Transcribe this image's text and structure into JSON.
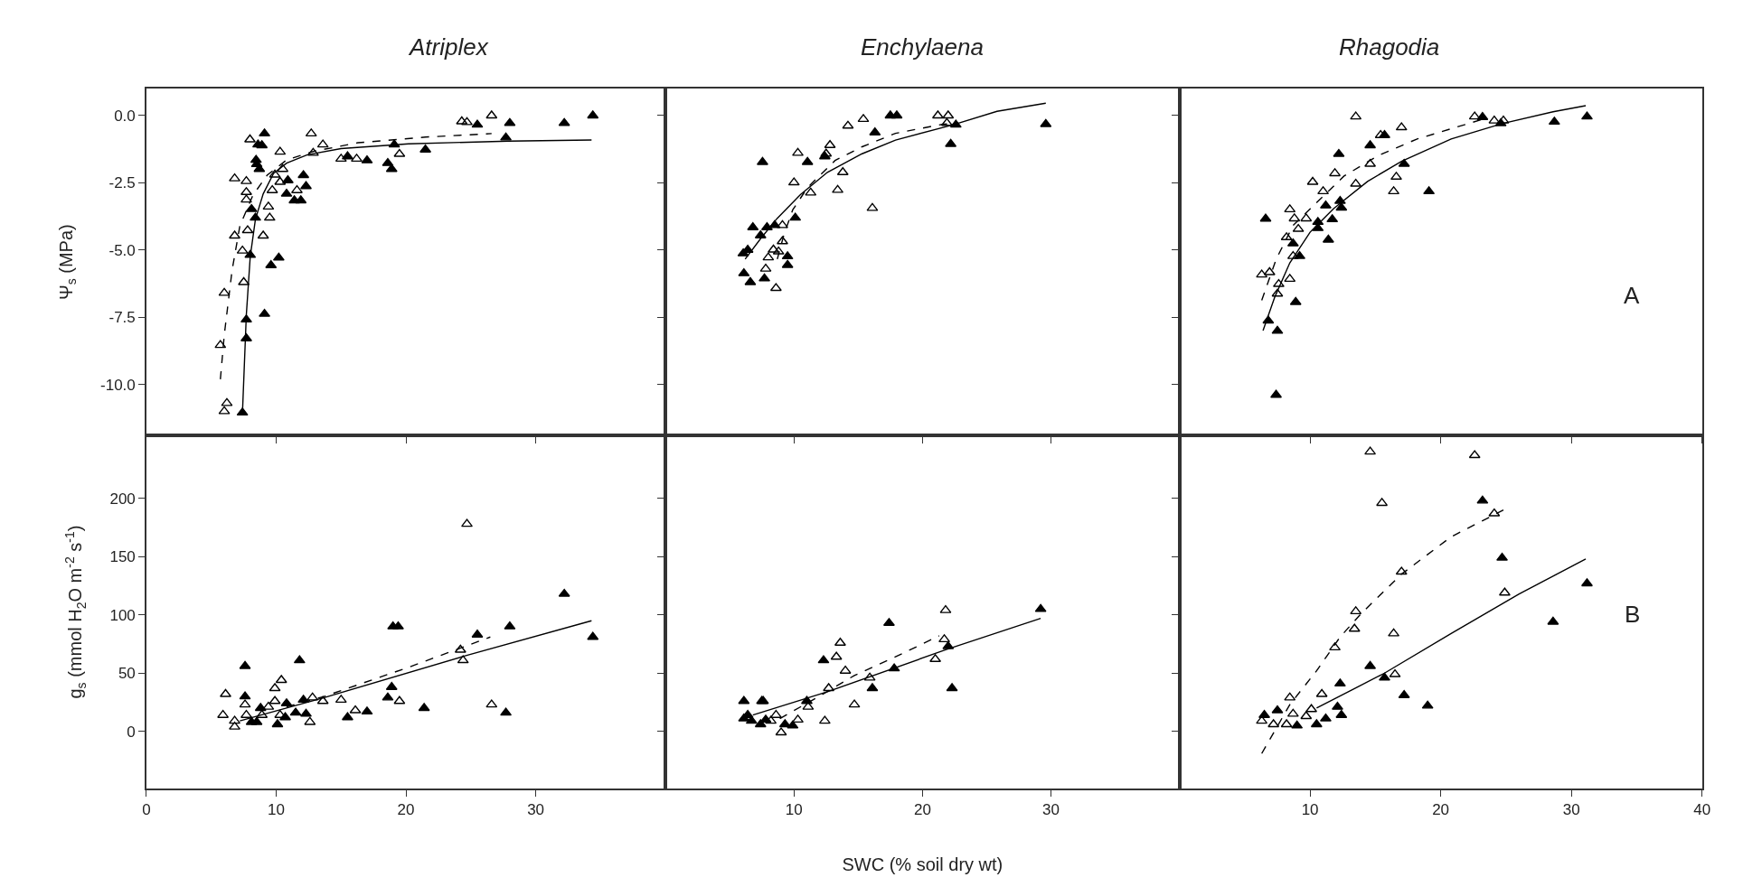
{
  "chart_data": [
    {
      "type": "scatter",
      "title": "Atriplex",
      "ylabel": "Ψ$_{s}$ (MPa)",
      "xlim": [
        0,
        40
      ],
      "xticks": [
        0,
        10,
        20,
        30
      ],
      "ylim": [
        -11.9,
        1.0
      ],
      "yticks": [
        {
          "value": 0,
          "label": "0.0"
        },
        {
          "value": -2.5,
          "label": "-2.5"
        },
        {
          "value": -5,
          "label": "-5.0"
        },
        {
          "value": -7.5,
          "label": "-7.5"
        },
        {
          "value": -10,
          "label": "-10.0"
        }
      ],
      "tick_labels": "y",
      "series": [
        {
          "type": "scatter",
          "marker": "triangle",
          "color": "#000000",
          "x": [
            9.1,
            8.6,
            8.9,
            8.45,
            8.5,
            8.7,
            10.9,
            12.1,
            12.3,
            10.8,
            11.4,
            11.9,
            8.1,
            8.4,
            8.0,
            9.6,
            10.2,
            7.7,
            9.1,
            7.7,
            7.4,
            15.5,
            17.0,
            19.1,
            18.6,
            18.9,
            21.5,
            25.5,
            28.0,
            27.7,
            32.2,
            34.4
          ],
          "values": [
            -0.67,
            -1.08,
            -1.11,
            -1.65,
            -1.81,
            -1.99,
            -2.41,
            -2.22,
            -2.63,
            -2.91,
            -3.16,
            -3.16,
            -3.48,
            -3.8,
            -5.19,
            -5.57,
            -5.29,
            -7.59,
            -7.38,
            -8.29,
            -11.05,
            -1.52,
            -1.67,
            -1.08,
            -1.77,
            -1.99,
            -1.27,
            -0.34,
            -0.28,
            -0.82,
            -0.28,
            0.0
          ]
        },
        {
          "type": "scatter",
          "marker": "triangle-open",
          "color": "#000000",
          "x": [
            7.98,
            12.7,
            13.6,
            10.3,
            12.85,
            15.0,
            16.2,
            19.5,
            24.3,
            24.7,
            26.6,
            6.8,
            7.7,
            7.7,
            7.7,
            9.9,
            10.5,
            10.3,
            9.7,
            11.6,
            9.4,
            9.5,
            6.8,
            7.8,
            9.0,
            7.4,
            7.5,
            6.0,
            5.7,
            6.2,
            6.0
          ],
          "values": [
            -0.89,
            -0.67,
            -1.08,
            -1.35,
            -1.39,
            -1.61,
            -1.61,
            -1.43,
            -0.22,
            -0.25,
            0.0,
            -2.34,
            -2.44,
            -2.85,
            -3.13,
            -2.2,
            -1.99,
            -2.47,
            -2.78,
            -2.78,
            -3.39,
            -3.8,
            -4.47,
            -4.27,
            -4.47,
            -5.03,
            -6.2,
            -6.6,
            -8.54,
            -10.7,
            -11.0
          ]
        },
        {
          "type": "line",
          "marker": "none",
          "line_style": "solid",
          "color": "#000000",
          "x": [
            7.4,
            7.7,
            8.0,
            8.4,
            9.0,
            9.8,
            10.8,
            12.4,
            15.0,
            20.2,
            27.9,
            34.3
          ],
          "values": [
            -11.08,
            -7.41,
            -5.25,
            -3.86,
            -2.91,
            -2.15,
            -1.77,
            -1.46,
            -1.23,
            -1.05,
            -0.95,
            -0.91
          ]
        },
        {
          "type": "line",
          "marker": "none",
          "line_style": "dashed",
          "color": "#000000",
          "x": [
            5.7,
            6.0,
            6.6,
            7.2,
            8.2,
            9.3,
            10.8,
            12.9,
            16.3,
            21.5,
            26.6
          ],
          "values": [
            -9.81,
            -8.16,
            -5.76,
            -4.11,
            -2.97,
            -2.22,
            -1.65,
            -1.33,
            -1.01,
            -0.8,
            -0.67
          ]
        }
      ]
    },
    {
      "type": "scatter",
      "title": "Enchylaena",
      "xlim": [
        0,
        40
      ],
      "xticks": [
        10,
        20,
        30
      ],
      "ylim": [
        -11.9,
        1.0
      ],
      "yticks": [
        0,
        -2.5,
        -5,
        -7.5,
        -10
      ],
      "tick_labels": false,
      "series": [
        {
          "type": "scatter",
          "marker": "triangle",
          "color": "#000000",
          "x": [
            7.55,
            11.05,
            12.4,
            16.3,
            17.5,
            18.0,
            22.6,
            22.2,
            29.6,
            6.8,
            7.9,
            8.5,
            10.1,
            7.4,
            6.4,
            6.05,
            9.5,
            9.5,
            6.1,
            6.6,
            7.7
          ],
          "values": [
            -1.73,
            -1.73,
            -1.52,
            -0.63,
            0.0,
            0.0,
            -0.34,
            -1.06,
            -0.32,
            -4.16,
            -4.16,
            -4.08,
            -3.8,
            -4.46,
            -5.0,
            -5.13,
            -5.24,
            -5.56,
            -5.87,
            -6.2,
            -6.06
          ]
        },
        {
          "type": "scatter",
          "marker": "triangle-open",
          "color": "#000000",
          "x": [
            10.3,
            10.0,
            11.3,
            12.8,
            12.5,
            14.2,
            15.4,
            13.8,
            13.4,
            16.1,
            21.2,
            22.0,
            21.9,
            9.1,
            9.1,
            8.4,
            8.8,
            8.0,
            7.8,
            8.6
          ],
          "values": [
            -1.39,
            -2.49,
            -2.87,
            -1.1,
            -1.42,
            -0.38,
            -0.13,
            -2.11,
            -2.77,
            -3.44,
            0.0,
            0.0,
            -0.28,
            -4.08,
            -4.68,
            -4.99,
            -5.06,
            -5.28,
            -5.7,
            -6.42
          ]
        },
        {
          "type": "line",
          "marker": "none",
          "line_style": "solid",
          "color": "#000000",
          "x": [
            6.2,
            7.4,
            8.7,
            10.5,
            12.6,
            15.3,
            17.9,
            22.4,
            25.8,
            29.6
          ],
          "values": [
            -5.34,
            -4.58,
            -3.82,
            -2.94,
            -2.11,
            -1.42,
            -0.91,
            -0.34,
            0.16,
            0.46
          ]
        },
        {
          "type": "line",
          "marker": "none",
          "line_style": "dashed",
          "color": "#000000",
          "x": [
            8.7,
            9.2,
            9.9,
            11.05,
            13.2,
            15.3,
            17.9,
            21.6,
            22.6
          ],
          "values": [
            -5.34,
            -4.46,
            -3.51,
            -2.68,
            -1.67,
            -1.16,
            -0.66,
            -0.32,
            -0.28
          ]
        }
      ]
    },
    {
      "type": "scatter",
      "title": "Rhagodia",
      "xlim": [
        0,
        40
      ],
      "xticks": [
        10,
        20,
        30,
        40
      ],
      "ylim": [
        -11.9,
        1.0
      ],
      "yticks": [
        0,
        -2.5,
        -5,
        -7.5,
        -10
      ],
      "tick_labels": false,
      "annotations": [
        "A"
      ],
      "series": [
        {
          "type": "scatter",
          "marker": "triangle",
          "color": "#000000",
          "x": [
            12.2,
            14.6,
            15.7,
            23.2,
            24.6,
            28.7,
            31.2,
            17.2,
            19.1,
            11.2,
            12.3,
            12.4,
            11.7,
            10.6,
            10.6,
            11.4,
            8.7,
            9.2,
            6.6,
            8.9,
            6.8,
            7.5,
            7.4
          ],
          "values": [
            -1.43,
            -1.11,
            -0.73,
            -0.06,
            -0.29,
            -0.23,
            -0.04,
            -1.8,
            -2.82,
            -3.35,
            -3.18,
            -3.43,
            -3.86,
            -3.96,
            -4.19,
            -4.62,
            -4.76,
            -5.23,
            -3.84,
            -6.94,
            -7.63,
            -8.01,
            -10.39
          ]
        },
        {
          "type": "scatter",
          "marker": "triangle-open",
          "color": "#000000",
          "x": [
            13.5,
            17.0,
            15.4,
            22.6,
            24.1,
            24.8,
            14.6,
            16.6,
            16.4,
            13.5,
            11.9,
            10.2,
            11.0,
            8.45,
            8.8,
            9.7,
            9.1,
            8.2,
            8.7,
            6.3,
            6.9,
            8.45,
            7.6,
            7.5
          ],
          "values": [
            -0.04,
            -0.44,
            -0.73,
            -0.04,
            -0.19,
            -0.19,
            -1.8,
            -2.28,
            -2.82,
            -2.54,
            -2.15,
            -2.47,
            -2.82,
            -3.49,
            -3.83,
            -3.83,
            -4.22,
            -4.53,
            -5.23,
            -5.92,
            -5.83,
            -6.08,
            -6.27,
            -6.63
          ]
        },
        {
          "type": "line",
          "marker": "none",
          "line_style": "solid",
          "color": "#000000",
          "x": [
            6.4,
            7.3,
            8.45,
            10.0,
            11.8,
            14.4,
            17.0,
            20.8,
            24.7,
            28.6,
            31.1
          ],
          "values": [
            -8.0,
            -6.75,
            -5.48,
            -4.34,
            -3.46,
            -2.45,
            -1.7,
            -0.87,
            -0.3,
            0.14,
            0.37
          ]
        },
        {
          "type": "line",
          "marker": "none",
          "line_style": "dashed",
          "color": "#000000",
          "x": [
            6.3,
            7.4,
            8.7,
            10.3,
            12.6,
            15.2,
            18.2,
            22.1,
            23.4
          ],
          "values": [
            -6.87,
            -5.35,
            -4.09,
            -3.33,
            -2.25,
            -1.49,
            -0.87,
            -0.3,
            -0.11
          ]
        }
      ]
    },
    {
      "type": "scatter",
      "ylabel": "g$_{s}$ (mmol H$_{2}$O m$^{-2}$ s$^{-1}$)",
      "xlim": [
        0,
        40
      ],
      "xticks": [
        0,
        10,
        20,
        30
      ],
      "ylim": [
        -49,
        254
      ],
      "yticks": [
        0,
        50,
        100,
        150,
        200
      ],
      "series": [
        {
          "type": "scatter",
          "marker": "triangle",
          "color": "#000000",
          "x": [
            7.6,
            11.8,
            7.6,
            8.8,
            8.1,
            8.5,
            10.8,
            12.1,
            11.5,
            12.3,
            10.1,
            10.7,
            15.5,
            17.0,
            18.6,
            18.9,
            19.0,
            19.4,
            21.4,
            25.5,
            28.0,
            27.7,
            32.2,
            34.4
          ],
          "values": [
            56,
            61,
            30,
            20,
            8,
            8,
            24,
            27,
            16,
            15,
            6,
            12,
            12,
            17,
            29,
            38,
            90,
            90,
            20,
            83,
            90,
            16,
            118,
            81
          ]
        },
        {
          "type": "scatter",
          "marker": "triangle-open",
          "color": "#000000",
          "x": [
            24.7,
            6.1,
            5.9,
            6.8,
            6.8,
            7.6,
            7.7,
            9.9,
            10.4,
            9.9,
            9.4,
            10.3,
            8.9,
            12.6,
            12.8,
            13.6,
            15.0,
            16.1,
            19.5,
            24.2,
            24.4,
            26.6
          ],
          "values": [
            178,
            32,
            14,
            9,
            4,
            23,
            14,
            37,
            44,
            26,
            21,
            14,
            14,
            8,
            29,
            26,
            27,
            18,
            26,
            70,
            61,
            23
          ]
        },
        {
          "type": "line",
          "marker": "none",
          "line_style": "solid",
          "color": "#000000",
          "x": [
            7.2,
            13.7,
            24.3,
            34.3
          ],
          "values": [
            9,
            29,
            64,
            95
          ]
        },
        {
          "type": "line",
          "marker": "none",
          "line_style": "dashed",
          "color": "#000000",
          "x": [
            10.8,
            13.7,
            20.2,
            26.5
          ],
          "values": [
            21,
            30,
            55,
            81
          ]
        }
      ]
    },
    {
      "type": "scatter",
      "xlabel": "SWC (% soil dry wt)",
      "xlim": [
        0,
        40
      ],
      "xticks": [
        10,
        20,
        30
      ],
      "ylim": [
        -49,
        254
      ],
      "yticks": [
        0,
        50,
        100,
        150,
        200
      ],
      "tick_labels": "x",
      "series": [
        {
          "type": "scatter",
          "marker": "triangle",
          "color": "#000000",
          "x": [
            6.1,
            7.5,
            7.6,
            12.3,
            17.4,
            16.1,
            17.8,
            22.0,
            22.3,
            29.2,
            11.0,
            6.1,
            6.4,
            6.7,
            7.4,
            7.8,
            9.3,
            9.9
          ],
          "values": [
            26,
            26,
            26,
            61,
            93,
            37,
            54,
            73,
            37,
            105,
            26,
            11,
            14,
            9,
            6,
            10,
            6,
            5
          ]
        },
        {
          "type": "scatter",
          "marker": "triangle-open",
          "color": "#000000",
          "x": [
            21.8,
            21.7,
            21.0,
            13.6,
            13.3,
            14.0,
            15.9,
            12.7,
            14.7,
            12.4,
            11.1,
            10.3,
            8.6,
            9.0,
            8.2
          ],
          "values": [
            104,
            79,
            62,
            76,
            64,
            52,
            46,
            37,
            23,
            9,
            21,
            10,
            14,
            -1,
            9
          ]
        },
        {
          "type": "line",
          "marker": "none",
          "line_style": "solid",
          "color": "#000000",
          "x": [
            6.8,
            12.6,
            21.8,
            29.2
          ],
          "values": [
            14,
            34,
            70,
            97
          ]
        },
        {
          "type": "line",
          "marker": "none",
          "line_style": "dashed",
          "color": "#000000",
          "x": [
            8.9,
            12.1,
            14.7,
            17.9,
            21.3
          ],
          "values": [
            11,
            31,
            48,
            64,
            82
          ]
        }
      ]
    },
    {
      "type": "scatter",
      "xlim": [
        0,
        40
      ],
      "xticks": [
        10,
        20,
        30,
        40
      ],
      "ylim": [
        -49,
        254
      ],
      "yticks": [
        0,
        50,
        100,
        150,
        200
      ],
      "tick_labels": "x",
      "annotations": [
        "B"
      ],
      "series": [
        {
          "type": "scatter",
          "marker": "triangle",
          "color": "#000000",
          "x": [
            23.2,
            24.7,
            31.2,
            28.6,
            14.6,
            15.7,
            17.2,
            19.0,
            12.3,
            12.4,
            12.1,
            11.2,
            10.5,
            7.5,
            6.5,
            9.0
          ],
          "values": [
            198,
            149,
            127,
            94,
            56,
            46,
            31,
            22,
            41,
            14,
            21,
            11,
            6,
            18,
            14,
            5
          ]
        },
        {
          "type": "scatter",
          "marker": "triangle-open",
          "color": "#000000",
          "x": [
            14.6,
            22.6,
            15.5,
            24.1,
            17.0,
            13.5,
            13.4,
            16.4,
            11.9,
            24.9,
            16.5,
            10.9,
            8.45,
            10.1,
            9.7,
            6.3,
            7.2,
            8.7,
            8.2
          ],
          "values": [
            240,
            237,
            196,
            187,
            137,
            103,
            88,
            84,
            72,
            119,
            49,
            32,
            29,
            19,
            13,
            9,
            6,
            15,
            6
          ]
        },
        {
          "type": "line",
          "marker": "none",
          "line_style": "solid",
          "color": "#000000",
          "x": [
            10.5,
            15.7,
            20.8,
            26.0,
            31.1
          ],
          "values": [
            20,
            50,
            84,
            118,
            148
          ]
        },
        {
          "type": "line",
          "marker": "none",
          "line_style": "dashed",
          "color": "#000000",
          "x": [
            6.3,
            8.45,
            10.5,
            12.3,
            13.9,
            17.0,
            20.8,
            24.8
          ],
          "values": [
            -19,
            23,
            52,
            81,
            101,
            135,
            167,
            190
          ]
        }
      ]
    }
  ]
}
